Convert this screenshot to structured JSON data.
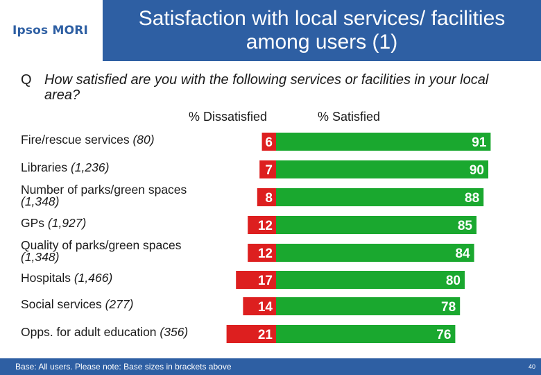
{
  "logo": "Ipsos MORI",
  "title": "Satisfaction with local services/ facilities among users (1)",
  "question": {
    "marker": "Q",
    "text": "How satisfied are you with the following services or facilities in your local area?"
  },
  "footer": {
    "note": "Base: All users. Please note: Base sizes in brackets above",
    "page": "40"
  },
  "colors": {
    "brand_blue": "#2e5fa3",
    "dissatisfied": "#dd1f1f",
    "satisfied": "#1aa82f"
  },
  "chart_data": {
    "type": "bar",
    "orientation": "horizontal",
    "stacked": "diverging",
    "categories": [
      {
        "name": "Fire/rescue services",
        "base": "(80)"
      },
      {
        "name": "Libraries",
        "base": "(1,236)"
      },
      {
        "name": "Number of parks/green spaces",
        "base": "(1,348)"
      },
      {
        "name": "GPs",
        "base": "(1,927)"
      },
      {
        "name": "Quality of parks/green spaces",
        "base": "(1,348)"
      },
      {
        "name": "Hospitals",
        "base": "(1,466)"
      },
      {
        "name": "Social services",
        "base": "(277)"
      },
      {
        "name": "Opps. for adult education",
        "base": "(356)"
      }
    ],
    "series": [
      {
        "name": "% Dissatisfied",
        "values": [
          6,
          7,
          8,
          12,
          12,
          17,
          14,
          21
        ]
      },
      {
        "name": "% Satisfied",
        "values": [
          91,
          90,
          88,
          85,
          84,
          80,
          78,
          76
        ]
      }
    ],
    "grid": false,
    "legend": "top"
  }
}
